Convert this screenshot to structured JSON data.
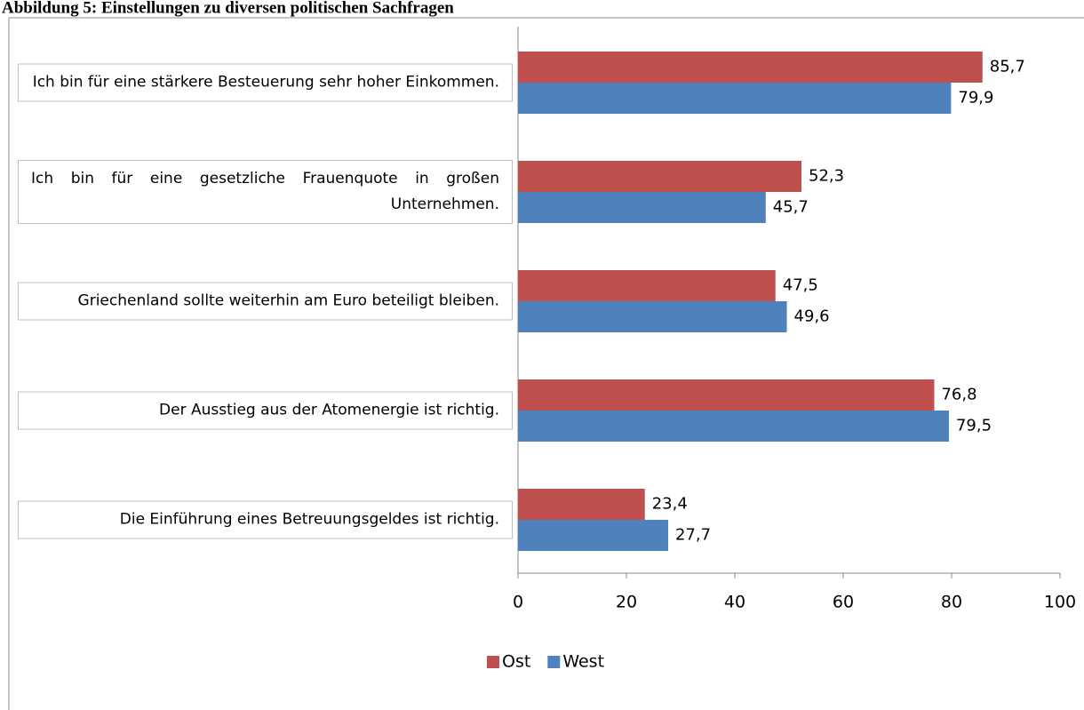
{
  "chart_data": {
    "type": "barh",
    "title": "Abbildung 5: Einstellungen zu diversen politischen Sachfragen",
    "categories": [
      "Ich bin für eine stärkere Besteuerung sehr hoher Einkommen.",
      "Ich bin für eine gesetzliche Frauenquote in großen Unternehmen.",
      "Griechenland sollte weiterhin am Euro beteiligt bleiben.",
      "Der Ausstieg aus der Atomenergie ist richtig.",
      "Die Einführung eines Betreuungsgeldes ist richtig."
    ],
    "series": [
      {
        "name": "Ost",
        "color": "#c0504d",
        "values": [
          85.7,
          52.3,
          47.5,
          76.8,
          23.4
        ],
        "value_labels": [
          "85,7",
          "52,3",
          "47,5",
          "76,8",
          "23,4"
        ]
      },
      {
        "name": "West",
        "color": "#4f81bd",
        "values": [
          79.9,
          45.7,
          49.6,
          79.5,
          27.7
        ],
        "value_labels": [
          "79,9",
          "45,7",
          "49,6",
          "79,5",
          "27,7"
        ]
      }
    ],
    "xlim": [
      0,
      100
    ],
    "xticks": [
      0,
      20,
      40,
      60,
      80,
      100
    ],
    "legend": "bottom"
  }
}
